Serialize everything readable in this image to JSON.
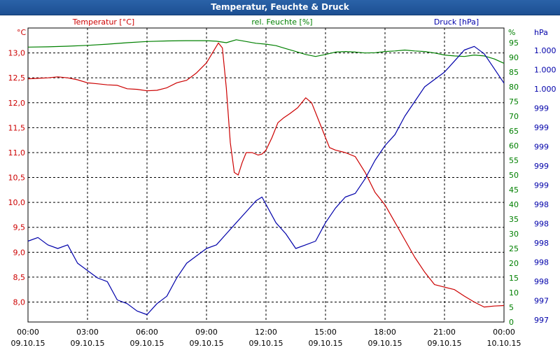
{
  "window": {
    "title": "Temperatur, Feuchte & Druck"
  },
  "chart_data": {
    "type": "line",
    "title": "Temperatur, Feuchte & Druck",
    "grid": true,
    "legend_placement": "top",
    "x_ticks": [
      {
        "time": "00:00",
        "date": "09.10.15"
      },
      {
        "time": "03:00",
        "date": "09.10.15"
      },
      {
        "time": "06:00",
        "date": "09.10.15"
      },
      {
        "time": "09:00",
        "date": "09.10.15"
      },
      {
        "time": "12:00",
        "date": "09.10.15"
      },
      {
        "time": "15:00",
        "date": "09.10.15"
      },
      {
        "time": "18:00",
        "date": "09.10.15"
      },
      {
        "time": "21:00",
        "date": "09.10.15"
      },
      {
        "time": "00:00",
        "date": "10.10.15"
      }
    ],
    "xlim_hours": [
      0,
      24
    ],
    "axes": {
      "temperature": {
        "label": "Temperatur [°C]",
        "unit": "°C",
        "color": "#cc0000",
        "ylim": [
          7.6,
          13.5
        ],
        "ticks": [
          "8,0",
          "8,5",
          "9,0",
          "9,5",
          "10,0",
          "10,5",
          "11,0",
          "11,5",
          "12,0",
          "12,5",
          "13,0"
        ]
      },
      "humidity": {
        "label": "rel. Feuchte [%]",
        "unit": "%",
        "color": "#008000",
        "ylim": [
          0,
          100
        ],
        "ticks": [
          "0",
          "5",
          "10",
          "15",
          "20",
          "25",
          "30",
          "35",
          "40",
          "45",
          "50",
          "55",
          "60",
          "65",
          "70",
          "75",
          "80",
          "85",
          "90",
          "95"
        ]
      },
      "pressure": {
        "label": "Druck [hPa]",
        "unit": "hPa",
        "color": "#0000aa",
        "ticks": [
          "997",
          "997",
          "998",
          "998",
          "998",
          "998",
          "998",
          "999",
          "999",
          "999",
          "999",
          "999",
          "1.000",
          "1.000",
          "1.000"
        ]
      }
    },
    "series": [
      {
        "name": "Temperatur [°C]",
        "axis": "temperature",
        "color": "#cc0000",
        "x": [
          0,
          0.5,
          1,
          1.5,
          2,
          2.5,
          3,
          3.5,
          4,
          4.5,
          5,
          5.5,
          6,
          6.5,
          7,
          7.5,
          8,
          8.5,
          9,
          9.3,
          9.6,
          9.8,
          10,
          10.2,
          10.4,
          10.6,
          10.8,
          11,
          11.3,
          11.6,
          11.8,
          12,
          12.3,
          12.6,
          12.9,
          13.2,
          13.6,
          14,
          14.3,
          14.6,
          14.9,
          15.2,
          15.5,
          16,
          16.5,
          17,
          17.5,
          18,
          18.5,
          19,
          19.5,
          20,
          20.5,
          21,
          21.5,
          22,
          22.5,
          23,
          23.5,
          24
        ],
        "y": [
          12.48,
          12.49,
          12.5,
          12.52,
          12.5,
          12.46,
          12.4,
          12.38,
          12.36,
          12.35,
          12.28,
          12.27,
          12.24,
          12.25,
          12.3,
          12.4,
          12.45,
          12.6,
          12.8,
          13.0,
          13.2,
          13.1,
          12.3,
          11.2,
          10.6,
          10.55,
          10.8,
          11.0,
          11.0,
          10.95,
          10.97,
          11.05,
          11.3,
          11.6,
          11.7,
          11.78,
          11.9,
          12.1,
          12.0,
          11.7,
          11.4,
          11.1,
          11.05,
          11.0,
          10.92,
          10.6,
          10.2,
          9.95,
          9.6,
          9.25,
          8.9,
          8.6,
          8.35,
          8.3,
          8.25,
          8.12,
          8.0,
          7.9,
          7.92,
          7.93
        ]
      },
      {
        "name": "rel. Feuchte [%]",
        "axis": "humidity",
        "color": "#008000",
        "x": [
          0,
          1,
          2,
          3,
          4,
          5,
          6,
          7,
          8,
          9,
          9.5,
          10,
          10.5,
          11,
          11.5,
          12,
          12.5,
          13,
          13.5,
          14,
          14.5,
          15,
          15.5,
          16,
          16.5,
          17,
          17.5,
          18,
          18.5,
          19,
          19.5,
          20,
          20.5,
          21,
          21.5,
          22,
          22.5,
          23,
          23.5,
          24
        ],
        "y": [
          93.5,
          93.6,
          93.8,
          94.1,
          94.5,
          95,
          95.4,
          95.6,
          95.7,
          95.7,
          95.5,
          95,
          96,
          95.4,
          94.8,
          94.5,
          94,
          93,
          92,
          91,
          90.3,
          91,
          91.8,
          92,
          91.8,
          91.5,
          91.6,
          92,
          92.2,
          92.5,
          92.2,
          92,
          91.5,
          90.8,
          90.5,
          90.3,
          90.8,
          90.5,
          89.5,
          88
        ]
      },
      {
        "name": "Druck [hPa]",
        "axis": "pressure",
        "color": "#0000aa",
        "x": [
          0,
          0.5,
          1,
          1.5,
          2,
          2.5,
          3,
          3.5,
          4,
          4.5,
          5,
          5.5,
          6,
          6.5,
          7,
          7.5,
          8,
          8.5,
          9,
          9.5,
          10,
          10.5,
          11,
          11.5,
          11.8,
          12,
          12.5,
          13,
          13.5,
          14,
          14.5,
          15,
          15.5,
          16,
          16.5,
          17,
          17.5,
          18,
          18.5,
          19,
          19.5,
          20,
          20.5,
          21,
          21.5,
          22,
          22.5,
          23,
          23.5,
          24
        ],
        "y": [
          997.85,
          997.9,
          997.8,
          997.75,
          997.8,
          997.55,
          997.45,
          997.35,
          997.3,
          997.05,
          997.0,
          996.9,
          996.85,
          997.0,
          997.1,
          997.35,
          997.55,
          997.65,
          997.75,
          997.8,
          997.95,
          998.1,
          998.25,
          998.4,
          998.45,
          998.35,
          998.1,
          997.95,
          997.75,
          997.8,
          997.85,
          998.1,
          998.3,
          998.45,
          998.5,
          998.7,
          998.95,
          999.15,
          999.3,
          999.55,
          999.75,
          999.95,
          1000.05,
          1000.15,
          1000.3,
          1000.45,
          1000.5,
          1000.4,
          1000.2,
          1000.0
        ]
      }
    ]
  }
}
